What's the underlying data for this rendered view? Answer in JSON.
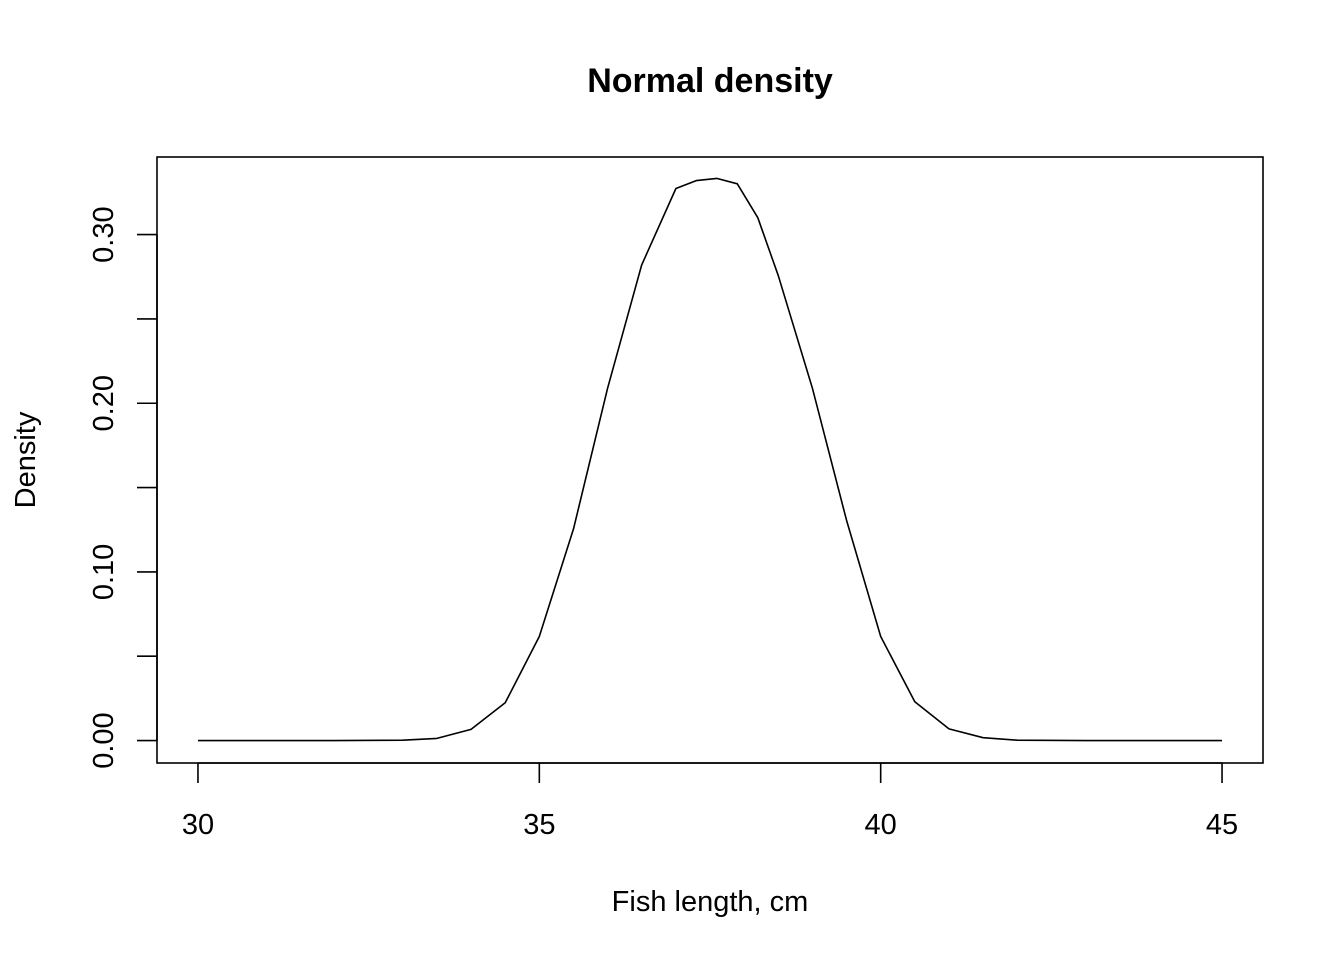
{
  "chart_data": {
    "type": "line",
    "title": "Normal density",
    "xlabel": "Fish length, cm",
    "ylabel": "Density",
    "xlim": [
      29.4,
      45.6
    ],
    "ylim": [
      -0.0133,
      0.346
    ],
    "x_ticks": [
      30,
      35,
      40,
      45
    ],
    "x_tick_labels": [
      "30",
      "35",
      "40",
      "45"
    ],
    "y_ticks": [
      0.0,
      0.05,
      0.1,
      0.15,
      0.2,
      0.25,
      0.3
    ],
    "y_tick_labels": [
      "0.00",
      "",
      "0.10",
      "",
      "0.20",
      "",
      "0.30"
    ],
    "grid": false,
    "legend": "none",
    "series": [
      {
        "color": "#000000",
        "x": [
          30,
          31,
          32,
          33,
          33.5,
          34,
          34.5,
          35,
          35.5,
          36,
          36.5,
          37,
          37.3,
          37.6,
          37.9,
          38.2,
          38.5,
          39,
          39.5,
          40,
          40.5,
          41,
          41.5,
          42,
          43,
          44,
          45
        ],
        "y": [
          0.0,
          0.0,
          0.0,
          0.0002,
          0.0013,
          0.0066,
          0.0224,
          0.0617,
          0.1255,
          0.2089,
          0.282,
          0.3273,
          0.332,
          0.3333,
          0.3301,
          0.31,
          0.2756,
          0.2089,
          0.1307,
          0.0617,
          0.023,
          0.0069,
          0.0017,
          0.0002,
          0.0,
          0.0,
          0.0
        ]
      }
    ]
  }
}
